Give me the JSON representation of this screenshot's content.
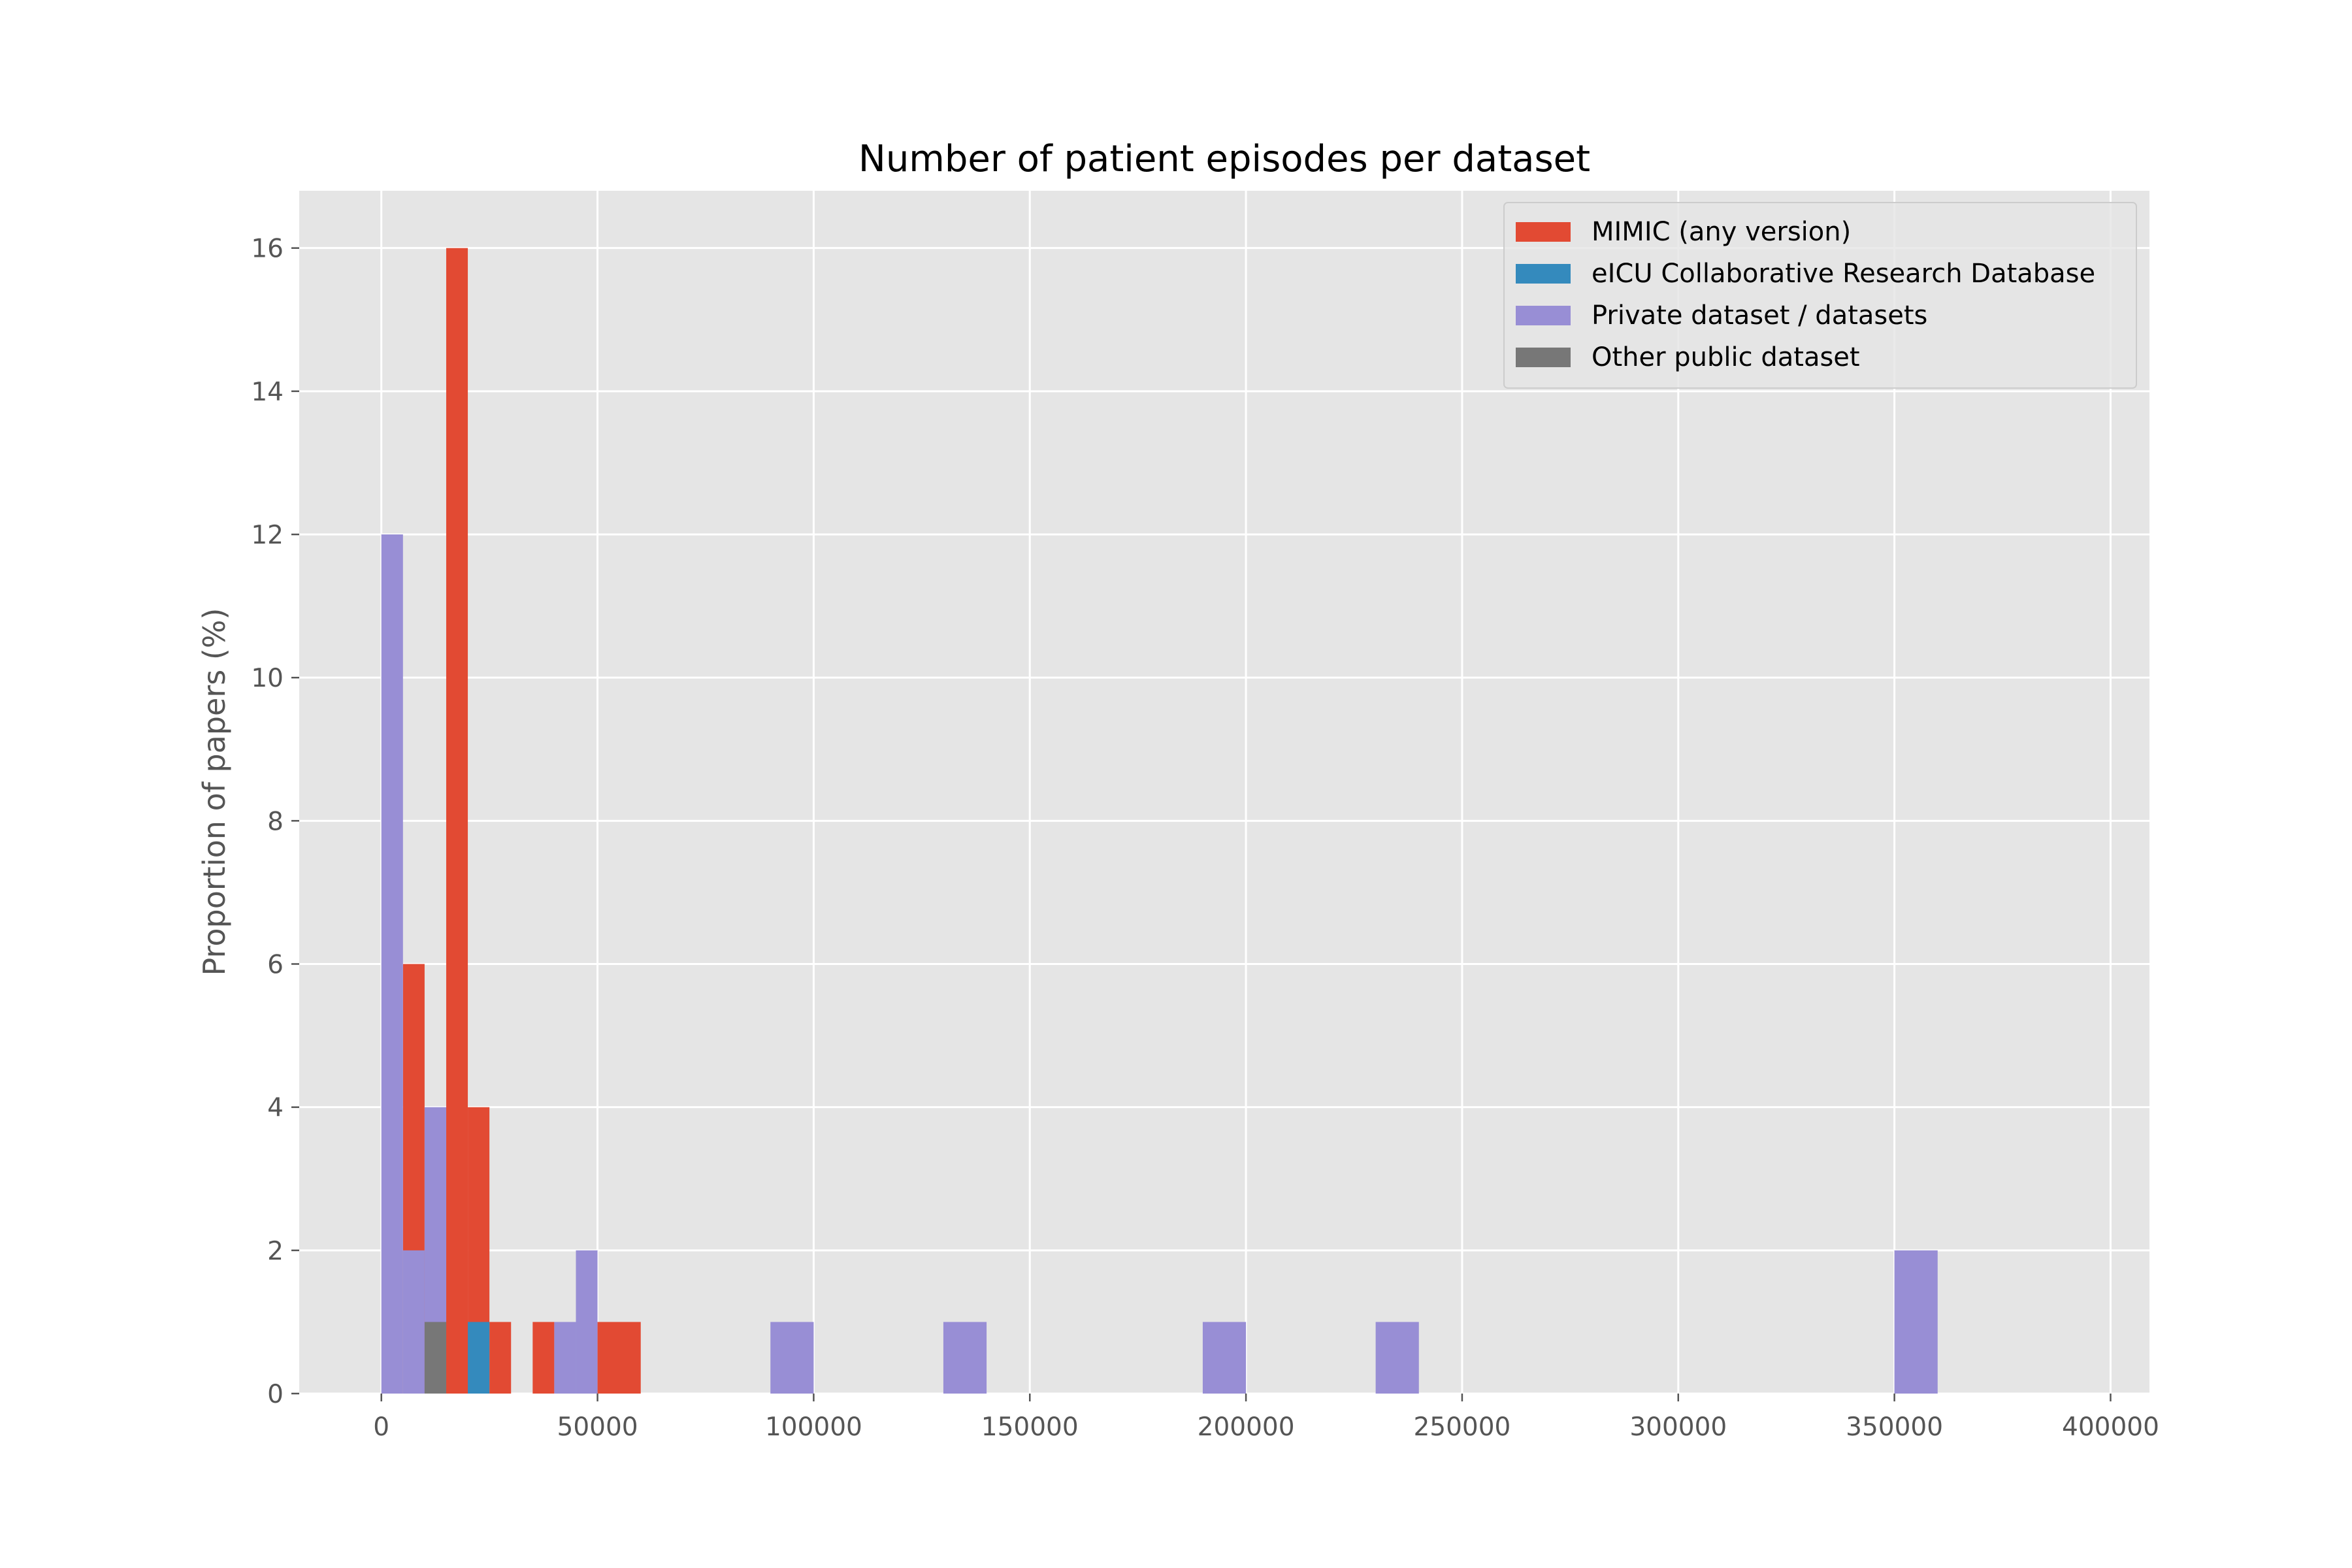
{
  "chart_data": {
    "type": "bar",
    "title": "Number of patient episodes per dataset",
    "xlabel": "",
    "ylabel": "Proportion of papers (%)",
    "xlim": [
      -19000,
      409000
    ],
    "ylim": [
      0,
      16.8
    ],
    "xticks": [
      0,
      50000,
      100000,
      150000,
      200000,
      250000,
      300000,
      350000,
      400000
    ],
    "xtick_labels": [
      "0",
      "50000",
      "100000",
      "150000",
      "200000",
      "250000",
      "300000",
      "350000",
      "400000"
    ],
    "yticks": [
      0,
      2,
      4,
      6,
      8,
      10,
      12,
      14,
      16
    ],
    "ytick_labels": [
      "0",
      "2",
      "4",
      "6",
      "8",
      "10",
      "12",
      "14",
      "16"
    ],
    "grid": true,
    "legend_position": "top-right",
    "bin_width": 10000,
    "series": [
      {
        "name": "MIMIC (any version)",
        "color": "#E24A33",
        "bins": [
          {
            "x0": 5000,
            "x1": 10000,
            "value": 6
          },
          {
            "x0": 15000,
            "x1": 20000,
            "value": 16
          },
          {
            "x0": 20000,
            "x1": 25000,
            "value": 4
          },
          {
            "x0": 25000,
            "x1": 30000,
            "value": 1
          },
          {
            "x0": 35000,
            "x1": 40000,
            "value": 1
          },
          {
            "x0": 50000,
            "x1": 60000,
            "value": 1
          }
        ]
      },
      {
        "name": "eICU Collaborative Research Database",
        "color": "#348ABD",
        "bins": [
          {
            "x0": 20000,
            "x1": 25000,
            "value": 1
          }
        ]
      },
      {
        "name": "Private dataset / datasets",
        "color": "#988ED5",
        "bins": [
          {
            "x0": 0,
            "x1": 5000,
            "value": 12
          },
          {
            "x0": 5000,
            "x1": 10000,
            "value": 2
          },
          {
            "x0": 10000,
            "x1": 15000,
            "value": 4
          },
          {
            "x0": 40000,
            "x1": 45000,
            "value": 1
          },
          {
            "x0": 45000,
            "x1": 50000,
            "value": 2
          },
          {
            "x0": 90000,
            "x1": 100000,
            "value": 1
          },
          {
            "x0": 130000,
            "x1": 140000,
            "value": 1
          },
          {
            "x0": 190000,
            "x1": 200000,
            "value": 1
          },
          {
            "x0": 230000,
            "x1": 240000,
            "value": 1
          },
          {
            "x0": 350000,
            "x1": 360000,
            "value": 2
          }
        ]
      },
      {
        "name": "Other public dataset",
        "color": "#777777",
        "bins": [
          {
            "x0": 10000,
            "x1": 15000,
            "value": 1
          }
        ]
      }
    ]
  }
}
